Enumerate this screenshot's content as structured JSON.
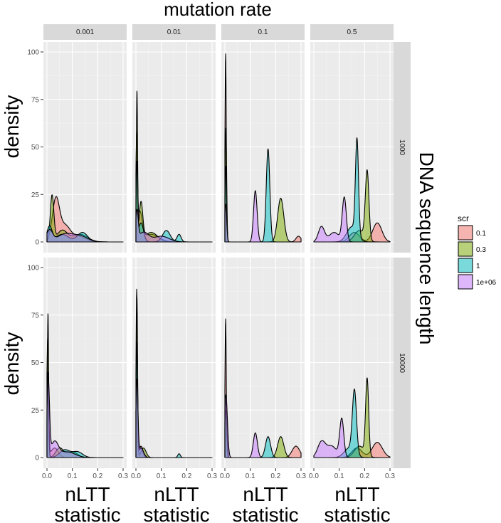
{
  "figure": {
    "top_title": "mutation rate",
    "right_title": "DNA sequence length",
    "y_title": "density",
    "x_title_line1": "nLTT",
    "x_title_line2": "statistic"
  },
  "legend": {
    "title": "scr",
    "entries": [
      {
        "label": "0.1",
        "color": "#F8766D"
      },
      {
        "label": "0.3",
        "color": "#7CAE00"
      },
      {
        "label": "1",
        "color": "#00BFC4"
      },
      {
        "label": "1e+06",
        "color": "#C77CFF"
      }
    ]
  },
  "chart_data": {
    "type": "area",
    "subtype": "faceted density",
    "facet_cols_title": "mutation rate",
    "facet_rows_title": "DNA sequence length",
    "col_values": [
      "0.001",
      "0.01",
      "0.1",
      "0.5"
    ],
    "row_values": [
      "1000",
      "10000"
    ],
    "xlabel": "nLTT statistic",
    "ylabel": "density",
    "xlim": [
      0,
      0.3
    ],
    "ylim": [
      0,
      100
    ],
    "x_ticks": [
      "0.0",
      "0.1",
      "0.2",
      "0.3"
    ],
    "y_ticks": [
      "0",
      "25",
      "50",
      "75",
      "100"
    ],
    "grid": true,
    "legend_position": "right",
    "panels": [
      {
        "row": "1000",
        "col": "0.001",
        "series": [
          {
            "scr": "0.1",
            "peaks": [
              [
                0.035,
                22,
                0.014
              ],
              [
                0.07,
                8,
                0.02
              ],
              [
                0.12,
                3,
                0.03
              ]
            ]
          },
          {
            "scr": "0.3",
            "peaks": [
              [
                0.02,
                24,
                0.007
              ],
              [
                0.06,
                6,
                0.02
              ],
              [
                0.13,
                4,
                0.03
              ]
            ]
          },
          {
            "scr": "1",
            "peaks": [
              [
                0.01,
                8,
                0.01
              ],
              [
                0.06,
                4,
                0.025
              ],
              [
                0.14,
                5,
                0.02
              ]
            ]
          },
          {
            "scr": "1e+06",
            "peaks": [
              [
                0.01,
                6,
                0.012
              ],
              [
                0.07,
                4,
                0.03
              ],
              [
                0.13,
                3,
                0.03
              ]
            ]
          }
        ]
      },
      {
        "row": "1000",
        "col": "0.01",
        "series": [
          {
            "scr": "0.1",
            "peaks": [
              [
                0.003,
                50,
                0.003
              ],
              [
                0.015,
                15,
                0.01
              ],
              [
                0.06,
                4,
                0.03
              ]
            ]
          },
          {
            "scr": "0.3",
            "peaks": [
              [
                0.004,
                78,
                0.0025
              ],
              [
                0.02,
                20,
                0.007
              ],
              [
                0.06,
                5,
                0.025
              ]
            ]
          },
          {
            "scr": "1",
            "peaks": [
              [
                0.004,
                40,
                0.003
              ],
              [
                0.02,
                10,
                0.01
              ],
              [
                0.12,
                6,
                0.015
              ],
              [
                0.17,
                4,
                0.008
              ]
            ]
          },
          {
            "scr": "1e+06",
            "peaks": [
              [
                0.004,
                15,
                0.005
              ],
              [
                0.03,
                5,
                0.02
              ],
              [
                0.1,
                3,
                0.03
              ]
            ]
          }
        ]
      },
      {
        "row": "1000",
        "col": "0.1",
        "series": [
          {
            "scr": "0.1",
            "peaks": [
              [
                0.003,
                99,
                0.0025
              ],
              [
                0.29,
                3,
                0.01
              ]
            ]
          },
          {
            "scr": "0.3",
            "peaks": [
              [
                0.004,
                60,
                0.003
              ],
              [
                0.22,
                23,
                0.012
              ]
            ]
          },
          {
            "scr": "1",
            "peaks": [
              [
                0.004,
                40,
                0.003
              ],
              [
                0.17,
                49,
                0.007
              ]
            ]
          },
          {
            "scr": "1e+06",
            "peaks": [
              [
                0.003,
                20,
                0.004
              ],
              [
                0.12,
                27,
                0.007
              ]
            ]
          }
        ]
      },
      {
        "row": "1000",
        "col": "0.5",
        "series": [
          {
            "scr": "0.1",
            "peaks": [
              [
                0.25,
                10,
                0.018
              ],
              [
                0.16,
                5,
                0.02
              ]
            ]
          },
          {
            "scr": "0.3",
            "peaks": [
              [
                0.21,
                36,
                0.007
              ],
              [
                0.18,
                6,
                0.02
              ]
            ]
          },
          {
            "scr": "1",
            "peaks": [
              [
                0.17,
                50,
                0.006
              ],
              [
                0.15,
                8,
                0.02
              ]
            ]
          },
          {
            "scr": "1e+06",
            "peaks": [
              [
                0.12,
                23,
                0.008
              ],
              [
                0.03,
                8,
                0.012
              ],
              [
                0.08,
                5,
                0.02
              ]
            ]
          }
        ]
      },
      {
        "row": "10000",
        "col": "0.001",
        "series": [
          {
            "scr": "0.1",
            "peaks": [
              [
                0.003,
                62,
                0.0035
              ],
              [
                0.03,
                5,
                0.015
              ]
            ]
          },
          {
            "scr": "0.3",
            "peaks": [
              [
                0.004,
                76,
                0.0025
              ],
              [
                0.05,
                5,
                0.015
              ],
              [
                0.1,
                3,
                0.02
              ]
            ]
          },
          {
            "scr": "1",
            "peaks": [
              [
                0.004,
                45,
                0.003
              ],
              [
                0.07,
                4,
                0.02
              ],
              [
                0.12,
                3,
                0.02
              ]
            ]
          },
          {
            "scr": "1e+06",
            "peaks": [
              [
                0.005,
                40,
                0.005
              ],
              [
                0.03,
                8,
                0.015
              ],
              [
                0.08,
                3,
                0.03
              ]
            ]
          }
        ]
      },
      {
        "row": "10000",
        "col": "0.01",
        "series": [
          {
            "scr": "0.1",
            "peaks": [
              [
                0.003,
                88,
                0.0025
              ],
              [
                0.02,
                6,
                0.008
              ]
            ]
          },
          {
            "scr": "0.3",
            "peaks": [
              [
                0.004,
                85,
                0.0025
              ],
              [
                0.03,
                5,
                0.01
              ]
            ]
          },
          {
            "scr": "1",
            "peaks": [
              [
                0.004,
                60,
                0.003
              ],
              [
                0.02,
                5,
                0.008
              ],
              [
                0.17,
                2,
                0.005
              ]
            ]
          },
          {
            "scr": "1e+06",
            "peaks": [
              [
                0.004,
                40,
                0.004
              ],
              [
                0.02,
                5,
                0.01
              ]
            ]
          }
        ]
      },
      {
        "row": "10000",
        "col": "0.1",
        "series": [
          {
            "scr": "0.1",
            "peaks": [
              [
                0.003,
                73,
                0.0025
              ],
              [
                0.28,
                6,
                0.015
              ]
            ]
          },
          {
            "scr": "0.3",
            "peaks": [
              [
                0.004,
                30,
                0.004
              ],
              [
                0.22,
                11,
                0.012
              ]
            ]
          },
          {
            "scr": "1",
            "peaks": [
              [
                0.004,
                25,
                0.004
              ],
              [
                0.17,
                11,
                0.01
              ]
            ]
          },
          {
            "scr": "1e+06",
            "peaks": [
              [
                0.004,
                33,
                0.006
              ],
              [
                0.12,
                13,
                0.008
              ]
            ]
          }
        ]
      },
      {
        "row": "10000",
        "col": "0.5",
        "series": [
          {
            "scr": "0.1",
            "peaks": [
              [
                0.25,
                8,
                0.02
              ],
              [
                0.17,
                5,
                0.02
              ]
            ]
          },
          {
            "scr": "0.3",
            "peaks": [
              [
                0.21,
                40,
                0.006
              ],
              [
                0.18,
                6,
                0.02
              ]
            ]
          },
          {
            "scr": "1",
            "peaks": [
              [
                0.16,
                33,
                0.008
              ],
              [
                0.14,
                5,
                0.02
              ]
            ]
          },
          {
            "scr": "1e+06",
            "peaks": [
              [
                0.11,
                20,
                0.008
              ],
              [
                0.03,
                8,
                0.015
              ],
              [
                0.07,
                6,
                0.02
              ]
            ]
          }
        ]
      }
    ]
  }
}
